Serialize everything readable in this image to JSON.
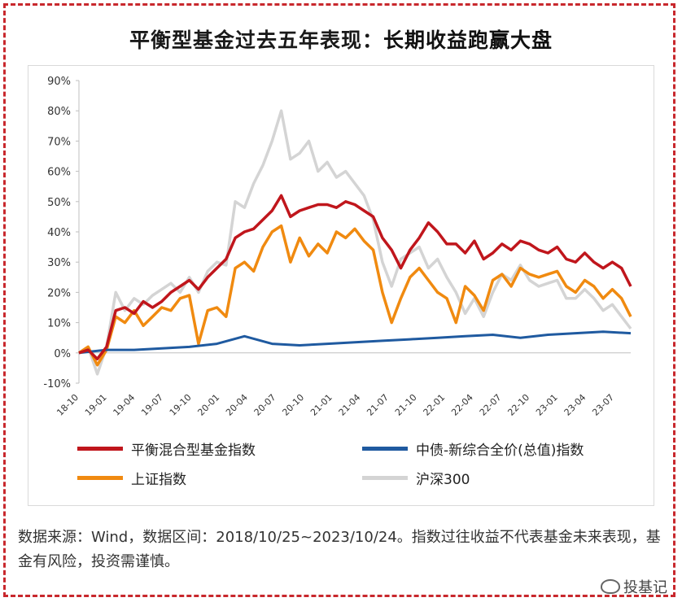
{
  "title": {
    "prefix": "平衡型基金过去五年表现：",
    "highlight": "长期收益跑赢大盘"
  },
  "chart_data": {
    "type": "line",
    "title": "平衡型基金过去五年表现：长期收益跑赢大盘",
    "ylim": [
      -10,
      90
    ],
    "yticks": [
      "90%",
      "80%",
      "70%",
      "60%",
      "50%",
      "40%",
      "30%",
      "20%",
      "10%",
      "0%",
      "-10%"
    ],
    "ytick_values": [
      90,
      80,
      70,
      60,
      50,
      40,
      30,
      20,
      10,
      0,
      -10
    ],
    "xlim": [
      0,
      60
    ],
    "xticks": [
      "18-10",
      "19-01",
      "19-04",
      "19-07",
      "19-10",
      "20-01",
      "20-04",
      "20-07",
      "20-10",
      "21-01",
      "21-04",
      "21-07",
      "21-10",
      "22-01",
      "22-04",
      "22-07",
      "22-10",
      "23-01",
      "23-04",
      "23-07"
    ],
    "series": [
      {
        "name": "平衡混合型基金指数",
        "color": "#c0161c",
        "x": [
          0,
          1,
          2,
          3,
          4,
          5,
          6,
          7,
          8,
          9,
          10,
          11,
          12,
          13,
          14,
          15,
          16,
          17,
          18,
          19,
          20,
          21,
          22,
          23,
          24,
          25,
          26,
          27,
          28,
          29,
          30,
          31,
          32,
          33,
          34,
          35,
          36,
          37,
          38,
          39,
          40,
          41,
          42,
          43,
          44,
          45,
          46,
          47,
          48,
          49,
          50,
          51,
          52,
          53,
          54,
          55,
          56,
          57,
          58,
          59,
          60
        ],
        "values": [
          0,
          1,
          -2,
          2,
          14,
          15,
          13,
          17,
          15,
          17,
          20,
          22,
          24,
          21,
          25,
          28,
          31,
          38,
          40,
          41,
          44,
          47,
          52,
          45,
          47,
          48,
          49,
          49,
          48,
          50,
          49,
          47,
          45,
          38,
          34,
          28,
          34,
          38,
          43,
          40,
          36,
          36,
          33,
          37,
          31,
          33,
          36,
          34,
          37,
          36,
          34,
          33,
          35,
          31,
          30,
          33,
          30,
          28,
          30,
          28,
          22
        ]
      },
      {
        "name": "中债-新综合全价(总值)指数",
        "color": "#1f5aa0",
        "x": [
          0,
          3,
          6,
          9,
          12,
          15,
          18,
          21,
          24,
          27,
          30,
          33,
          36,
          39,
          42,
          45,
          48,
          51,
          54,
          57,
          60
        ],
        "values": [
          0,
          1,
          1,
          1.5,
          2,
          3,
          5.5,
          3,
          2.5,
          3,
          3.5,
          4,
          4.5,
          5,
          5.5,
          6,
          5,
          6,
          6.5,
          7,
          6.5
        ]
      },
      {
        "name": "上证指数",
        "color": "#f08a10",
        "x": [
          0,
          1,
          2,
          3,
          4,
          5,
          6,
          7,
          8,
          9,
          10,
          11,
          12,
          13,
          14,
          15,
          16,
          17,
          18,
          19,
          20,
          21,
          22,
          23,
          24,
          25,
          26,
          27,
          28,
          29,
          30,
          31,
          32,
          33,
          34,
          35,
          36,
          37,
          38,
          39,
          40,
          41,
          42,
          43,
          44,
          45,
          46,
          47,
          48,
          49,
          50,
          51,
          52,
          53,
          54,
          55,
          56,
          57,
          58,
          59,
          60
        ],
        "values": [
          0,
          2,
          -4,
          1,
          12,
          10,
          14,
          9,
          12,
          15,
          14,
          18,
          19,
          3,
          14,
          15,
          12,
          28,
          30,
          27,
          35,
          40,
          42,
          30,
          38,
          32,
          36,
          33,
          40,
          38,
          41,
          37,
          34,
          20,
          10,
          18,
          25,
          28,
          24,
          20,
          18,
          10,
          22,
          19,
          14,
          24,
          26,
          22,
          28,
          26,
          25,
          26,
          27,
          22,
          20,
          24,
          22,
          18,
          21,
          18,
          12
        ]
      },
      {
        "name": "沪深300",
        "color": "#d4d4d4",
        "x": [
          0,
          1,
          2,
          3,
          4,
          5,
          6,
          7,
          8,
          9,
          10,
          11,
          12,
          13,
          14,
          15,
          16,
          17,
          18,
          19,
          20,
          21,
          22,
          23,
          24,
          25,
          26,
          27,
          28,
          29,
          30,
          31,
          32,
          33,
          34,
          35,
          36,
          37,
          38,
          39,
          40,
          41,
          42,
          43,
          44,
          45,
          46,
          47,
          48,
          49,
          50,
          51,
          52,
          53,
          54,
          55,
          56,
          57,
          58,
          59,
          60
        ],
        "values": [
          0,
          2,
          -7,
          2,
          20,
          14,
          18,
          16,
          19,
          21,
          23,
          20,
          25,
          20,
          27,
          30,
          29,
          50,
          48,
          56,
          62,
          70,
          80,
          64,
          66,
          70,
          60,
          63,
          58,
          60,
          56,
          52,
          44,
          30,
          22,
          31,
          33,
          35,
          28,
          31,
          25,
          20,
          13,
          18,
          12,
          20,
          26,
          24,
          29,
          24,
          22,
          23,
          24,
          18,
          18,
          21,
          18,
          14,
          16,
          12,
          8
        ]
      }
    ]
  },
  "legend": [
    {
      "label": "平衡混合型基金指数",
      "color": "#c0161c"
    },
    {
      "label": "中债-新综合全价(总值)指数",
      "color": "#1f5aa0"
    },
    {
      "label": "上证指数",
      "color": "#f08a10"
    },
    {
      "label": "沪深300",
      "color": "#d4d4d4"
    }
  ],
  "source_text": "数据来源：Wind，数据区间：2018/10/25~2023/10/24。指数过往收益不代表基金未来表现，基金有风险，投资需谨慎。",
  "watermark": "投基记",
  "colors": {
    "frame": "#c8282d"
  }
}
